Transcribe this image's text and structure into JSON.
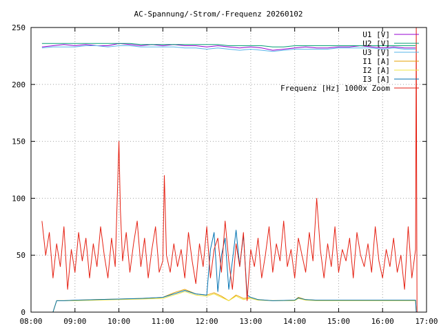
{
  "chart_data": {
    "type": "line",
    "title": "AC-Spannung/-Strom/-Frequenz 20260102",
    "xlabel": "",
    "ylabel": "",
    "x_domain": [
      "08:00",
      "17:00"
    ],
    "ylim": [
      0,
      250
    ],
    "x_ticks": [
      "08:00",
      "09:00",
      "10:00",
      "11:00",
      "12:00",
      "13:00",
      "14:00",
      "15:00",
      "16:00",
      "17:00"
    ],
    "y_ticks": [
      0,
      50,
      100,
      150,
      200,
      250
    ],
    "grid": true,
    "legend_position": "top-right",
    "series": [
      {
        "name": "U1 [V]",
        "color": "#9400d3",
        "x": [
          "08:15",
          "08:30",
          "08:45",
          "09:00",
          "09:15",
          "09:30",
          "09:45",
          "10:00",
          "10:15",
          "10:30",
          "10:45",
          "11:00",
          "11:15",
          "11:30",
          "11:45",
          "12:00",
          "12:15",
          "12:30",
          "12:45",
          "13:00",
          "13:15",
          "13:30",
          "13:45",
          "14:00",
          "14:15",
          "14:30",
          "14:45",
          "15:00",
          "15:15",
          "15:30",
          "15:45",
          "16:00",
          "16:15",
          "16:30",
          "16:45"
        ],
        "values": [
          233,
          234,
          235,
          234,
          235,
          234,
          234,
          236,
          235,
          234,
          235,
          234,
          235,
          234,
          234,
          233,
          234,
          233,
          232,
          233,
          232,
          230,
          231,
          232,
          233,
          232,
          232,
          233,
          233,
          234,
          233,
          232,
          233,
          232,
          232
        ]
      },
      {
        "name": "U2 [V]",
        "color": "#009e73",
        "x": [
          "08:15",
          "08:30",
          "08:45",
          "09:00",
          "09:15",
          "09:30",
          "09:45",
          "10:00",
          "10:15",
          "10:30",
          "10:45",
          "11:00",
          "11:15",
          "11:30",
          "11:45",
          "12:00",
          "12:15",
          "12:30",
          "12:45",
          "13:00",
          "13:15",
          "13:30",
          "13:45",
          "14:00",
          "14:15",
          "14:30",
          "14:45",
          "15:00",
          "15:15",
          "15:30",
          "15:45",
          "16:00",
          "16:15",
          "16:30",
          "16:45"
        ],
        "values": [
          236,
          236,
          236,
          236,
          236,
          236,
          236,
          236,
          236,
          235,
          235,
          235,
          235,
          235,
          235,
          235,
          235,
          234,
          234,
          234,
          234,
          233,
          233,
          234,
          234,
          234,
          234,
          234,
          234,
          234,
          234,
          234,
          234,
          234,
          234
        ]
      },
      {
        "name": "U3 [V]",
        "color": "#56b4e9",
        "x": [
          "08:15",
          "08:30",
          "08:45",
          "09:00",
          "09:15",
          "09:30",
          "09:45",
          "10:00",
          "10:15",
          "10:30",
          "10:45",
          "11:00",
          "11:15",
          "11:30",
          "11:45",
          "12:00",
          "12:15",
          "12:30",
          "12:45",
          "13:00",
          "13:15",
          "13:30",
          "13:45",
          "14:00",
          "14:15",
          "14:30",
          "14:45",
          "15:00",
          "15:15",
          "15:30",
          "15:45",
          "16:00",
          "16:15",
          "16:30",
          "16:45"
        ],
        "values": [
          232,
          233,
          233,
          233,
          234,
          234,
          233,
          234,
          234,
          233,
          233,
          233,
          233,
          232,
          232,
          231,
          232,
          231,
          230,
          231,
          230,
          229,
          230,
          231,
          231,
          231,
          231,
          232,
          232,
          232,
          232,
          231,
          232,
          231,
          231
        ]
      },
      {
        "name": "I1 [A]",
        "color": "#e69f00",
        "x": [
          "08:30",
          "08:35",
          "08:45",
          "09:00",
          "09:30",
          "10:00",
          "10:30",
          "11:00",
          "11:15",
          "11:30",
          "11:45",
          "12:00",
          "12:10",
          "12:20",
          "12:30",
          "12:40",
          "12:50",
          "13:00",
          "13:10",
          "13:30",
          "14:00",
          "14:05",
          "14:15",
          "14:30",
          "15:00",
          "15:30",
          "16:00",
          "16:30",
          "16:45",
          "16:46"
        ],
        "values": [
          0,
          10,
          10,
          10.5,
          11,
          11.5,
          12,
          13,
          17,
          20,
          16,
          15,
          17,
          14,
          10,
          15,
          12,
          13,
          11,
          10,
          10.5,
          13,
          11,
          10.5,
          10.5,
          10.5,
          10.5,
          10.5,
          10.5,
          0
        ]
      },
      {
        "name": "I2 [A]",
        "color": "#f0e442",
        "x": [
          "08:30",
          "08:35",
          "08:45",
          "09:00",
          "09:30",
          "10:00",
          "10:30",
          "11:00",
          "11:15",
          "11:30",
          "11:45",
          "12:00",
          "12:10",
          "12:20",
          "12:30",
          "12:40",
          "12:50",
          "13:00",
          "13:10",
          "13:30",
          "14:00",
          "14:05",
          "14:15",
          "14:30",
          "15:00",
          "15:30",
          "16:00",
          "16:30",
          "16:45",
          "16:46"
        ],
        "values": [
          0,
          10,
          10,
          10,
          10.5,
          11,
          11.5,
          12,
          15,
          18,
          15,
          14,
          16,
          13,
          10,
          14,
          11,
          12,
          10.5,
          10,
          10,
          12,
          10.5,
          10,
          10,
          10,
          10,
          10,
          10,
          0
        ]
      },
      {
        "name": "I3 [A]",
        "color": "#0072b2",
        "x": [
          "08:30",
          "08:35",
          "08:45",
          "09:00",
          "09:30",
          "10:00",
          "10:30",
          "11:00",
          "11:15",
          "11:30",
          "11:45",
          "12:00",
          "12:05",
          "12:10",
          "12:15",
          "12:20",
          "12:25",
          "12:30",
          "12:35",
          "12:40",
          "12:45",
          "12:50",
          "12:55",
          "13:00",
          "13:10",
          "13:30",
          "14:00",
          "14:05",
          "14:15",
          "14:30",
          "15:00",
          "15:30",
          "16:00",
          "16:30",
          "16:45",
          "16:46"
        ],
        "values": [
          0,
          10,
          10,
          10.5,
          11,
          11.5,
          12,
          13,
          16,
          19,
          16,
          15,
          55,
          70,
          18,
          50,
          65,
          20,
          45,
          72,
          40,
          68,
          15,
          13,
          11,
          10,
          10.5,
          12.5,
          11,
          10.5,
          10.5,
          10.5,
          10.5,
          10.5,
          10.5,
          0
        ]
      },
      {
        "name": "Frequenz [Hz] 1000x Zoom",
        "color": "#e51e10",
        "x": [
          "08:15",
          "08:20",
          "08:25",
          "08:30",
          "08:35",
          "08:40",
          "08:45",
          "08:50",
          "08:55",
          "09:00",
          "09:05",
          "09:10",
          "09:15",
          "09:20",
          "09:25",
          "09:30",
          "09:35",
          "09:40",
          "09:45",
          "09:50",
          "09:55",
          "10:00",
          "10:02",
          "10:05",
          "10:10",
          "10:15",
          "10:20",
          "10:25",
          "10:30",
          "10:35",
          "10:40",
          "10:45",
          "10:50",
          "10:55",
          "11:00",
          "11:02",
          "11:05",
          "11:10",
          "11:15",
          "11:20",
          "11:25",
          "11:30",
          "11:35",
          "11:40",
          "11:45",
          "11:50",
          "11:55",
          "12:00",
          "12:05",
          "12:10",
          "12:15",
          "12:20",
          "12:25",
          "12:30",
          "12:35",
          "12:40",
          "12:45",
          "12:50",
          "12:55",
          "13:00",
          "13:05",
          "13:10",
          "13:15",
          "13:20",
          "13:25",
          "13:30",
          "13:35",
          "13:40",
          "13:45",
          "13:50",
          "13:55",
          "14:00",
          "14:05",
          "14:10",
          "14:15",
          "14:20",
          "14:25",
          "14:30",
          "14:35",
          "14:40",
          "14:45",
          "14:50",
          "14:55",
          "15:00",
          "15:05",
          "15:10",
          "15:15",
          "15:20",
          "15:25",
          "15:30",
          "15:35",
          "15:40",
          "15:45",
          "15:50",
          "15:55",
          "16:00",
          "16:05",
          "16:10",
          "16:15",
          "16:20",
          "16:25",
          "16:30",
          "16:35",
          "16:40",
          "16:45",
          "16:46",
          "16:47"
        ],
        "values": [
          80,
          50,
          70,
          30,
          60,
          40,
          75,
          20,
          55,
          35,
          70,
          45,
          65,
          30,
          60,
          40,
          75,
          50,
          30,
          65,
          40,
          150,
          90,
          45,
          70,
          35,
          60,
          80,
          40,
          65,
          30,
          55,
          75,
          35,
          45,
          120,
          50,
          35,
          60,
          40,
          55,
          30,
          70,
          45,
          25,
          60,
          40,
          75,
          30,
          55,
          65,
          35,
          80,
          45,
          20,
          60,
          40,
          70,
          10,
          55,
          40,
          65,
          30,
          50,
          75,
          35,
          60,
          45,
          80,
          40,
          55,
          30,
          65,
          50,
          35,
          70,
          45,
          100,
          55,
          30,
          60,
          40,
          75,
          35,
          55,
          45,
          65,
          30,
          70,
          50,
          40,
          60,
          35,
          75,
          45,
          30,
          55,
          40,
          65,
          35,
          50,
          20,
          75,
          30,
          55,
          250,
          0
        ]
      }
    ]
  }
}
